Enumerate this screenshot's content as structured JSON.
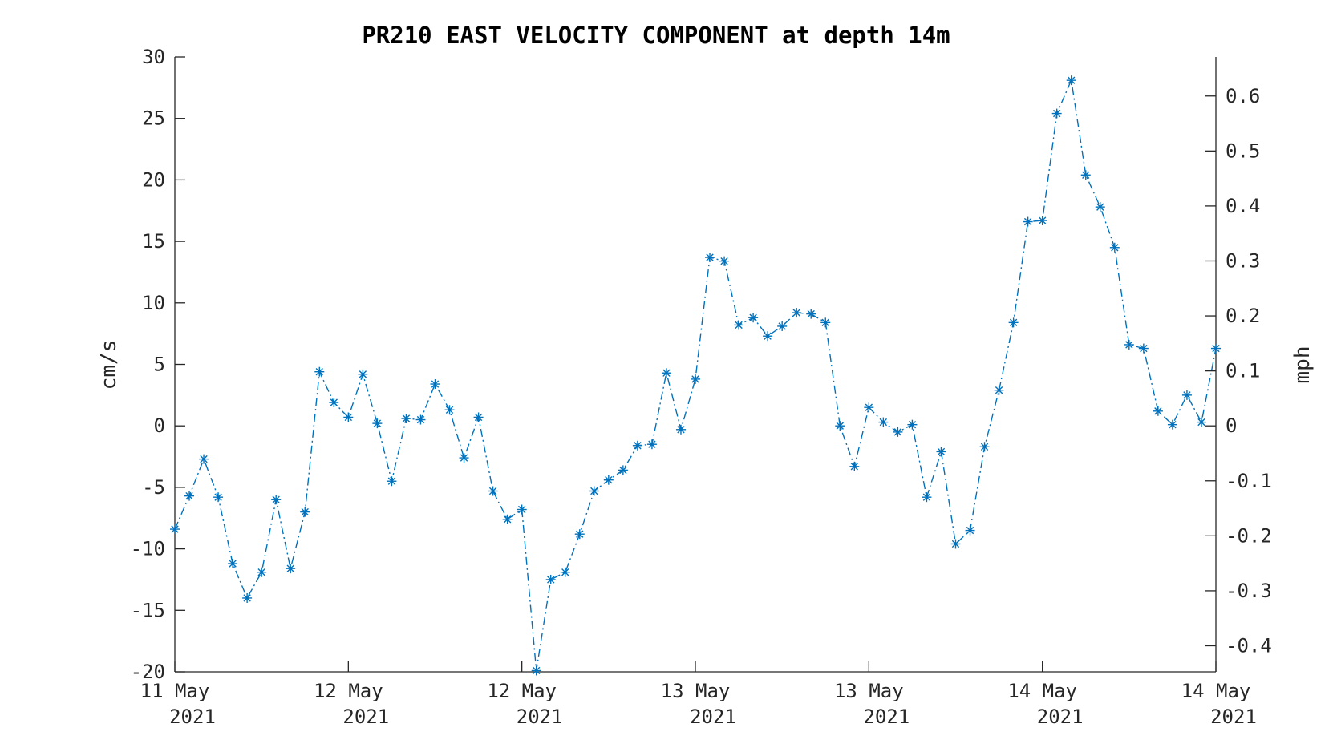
{
  "chart_data": {
    "type": "line",
    "title": "PR210 EAST VELOCITY COMPONENT at depth 14m",
    "ylabel": "cm/s",
    "y2label": "mph",
    "ylim": [
      -20,
      30
    ],
    "y2lim": [
      -0.4474,
      0.6711
    ],
    "yticks": [
      "-20",
      "-15",
      "-10",
      "-5",
      "0",
      "5",
      "10",
      "15",
      "20",
      "25",
      "30"
    ],
    "y2ticks": [
      "-0.4",
      "-0.3",
      "-0.2",
      "-0.1",
      "0",
      "0.1",
      "0.2",
      "0.3",
      "0.4",
      "0.5",
      "0.6"
    ],
    "xticks": [
      {
        "line1": "11 May",
        "line2": "2021"
      },
      {
        "line1": "12 May",
        "line2": "2021"
      },
      {
        "line1": "12 May",
        "line2": "2021"
      },
      {
        "line1": "13 May",
        "line2": "2021"
      },
      {
        "line1": "13 May",
        "line2": "2021"
      },
      {
        "line1": "14 May",
        "line2": "2021"
      },
      {
        "line1": "14 May",
        "line2": "2021"
      }
    ],
    "x_start": "2021-05-11 12:00",
    "x_step_hours": 1,
    "xlim_hours": [
      0,
      72
    ],
    "grid": false,
    "legend": "none",
    "marker": "asterisk",
    "line_style": "dash-dot",
    "series": [
      {
        "color": "#0072BD",
        "values": [
          -8.4,
          -5.7,
          -2.7,
          -5.8,
          -11.2,
          -14.0,
          -11.9,
          -6.0,
          -11.6,
          -7.0,
          4.4,
          1.9,
          0.7,
          4.2,
          0.2,
          -4.5,
          0.6,
          0.5,
          3.4,
          1.3,
          -2.6,
          0.7,
          -5.3,
          -7.6,
          -6.8,
          -19.9,
          -12.5,
          -11.9,
          -8.8,
          -5.3,
          -4.4,
          -3.6,
          -1.6,
          -1.5,
          4.3,
          -0.3,
          3.8,
          13.7,
          13.4,
          8.2,
          8.8,
          7.3,
          8.1,
          9.2,
          9.1,
          8.4,
          0.0,
          -3.3,
          1.5,
          0.3,
          -0.5,
          0.1,
          -5.8,
          -2.1,
          -9.6,
          -8.5,
          -1.7,
          2.9,
          8.4,
          16.6,
          16.7,
          25.4,
          28.1,
          20.4,
          17.8,
          14.5,
          6.6,
          6.3,
          1.2,
          0.1,
          2.5,
          0.3,
          6.3
        ]
      }
    ]
  }
}
